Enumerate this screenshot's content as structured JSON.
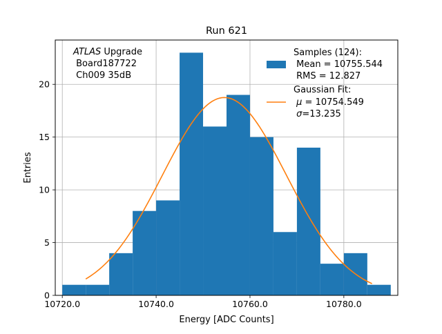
{
  "chart_data": {
    "type": "bar",
    "title": "Run 621",
    "xlabel": "Energy [ADC Counts]",
    "ylabel": "Entries",
    "xlim": [
      10718.5,
      10791.5
    ],
    "ylim": [
      0,
      24.2
    ],
    "x_ticks": [
      10720,
      10740,
      10760,
      10780
    ],
    "x_tick_labels": [
      "10720.0",
      "10740.0",
      "10760.0",
      "10780.0"
    ],
    "y_ticks": [
      0,
      5,
      10,
      15,
      20
    ],
    "y_tick_labels": [
      "0",
      "5",
      "10",
      "15",
      "20"
    ],
    "grid": true,
    "bin_edges": [
      10720,
      10725,
      10730,
      10735,
      10740,
      10745,
      10750,
      10755,
      10760,
      10765,
      10770,
      10775,
      10780,
      10785,
      10790
    ],
    "counts": [
      1,
      1,
      4,
      8,
      9,
      23,
      16,
      19,
      15,
      6,
      14,
      3,
      4,
      1
    ],
    "fit": {
      "mu": 10754.549,
      "sigma": 13.235,
      "amplitude": 18.75,
      "x_range": [
        10725,
        10786
      ]
    },
    "colors": {
      "histogram": "#1f77b4",
      "fit": "#ff7f0e",
      "grid": "#b0b0b0"
    },
    "annotation": {
      "italic": "ATLAS",
      "line1_rest": " Upgrade",
      "line2": " Board187722",
      "line3": " Ch009 35dB"
    },
    "legend": {
      "position": "top-right",
      "samples": {
        "line1": "Samples (124):",
        "line2": " Mean = 10755.544",
        "line3": " RMS = 12.827"
      },
      "fit": {
        "line1": "Gaussian Fit:",
        "line2_symbol": "μ",
        "line2_rest": " = 10754.549",
        "line3_symbol": "σ",
        "line3_rest": "=13.235"
      }
    }
  }
}
